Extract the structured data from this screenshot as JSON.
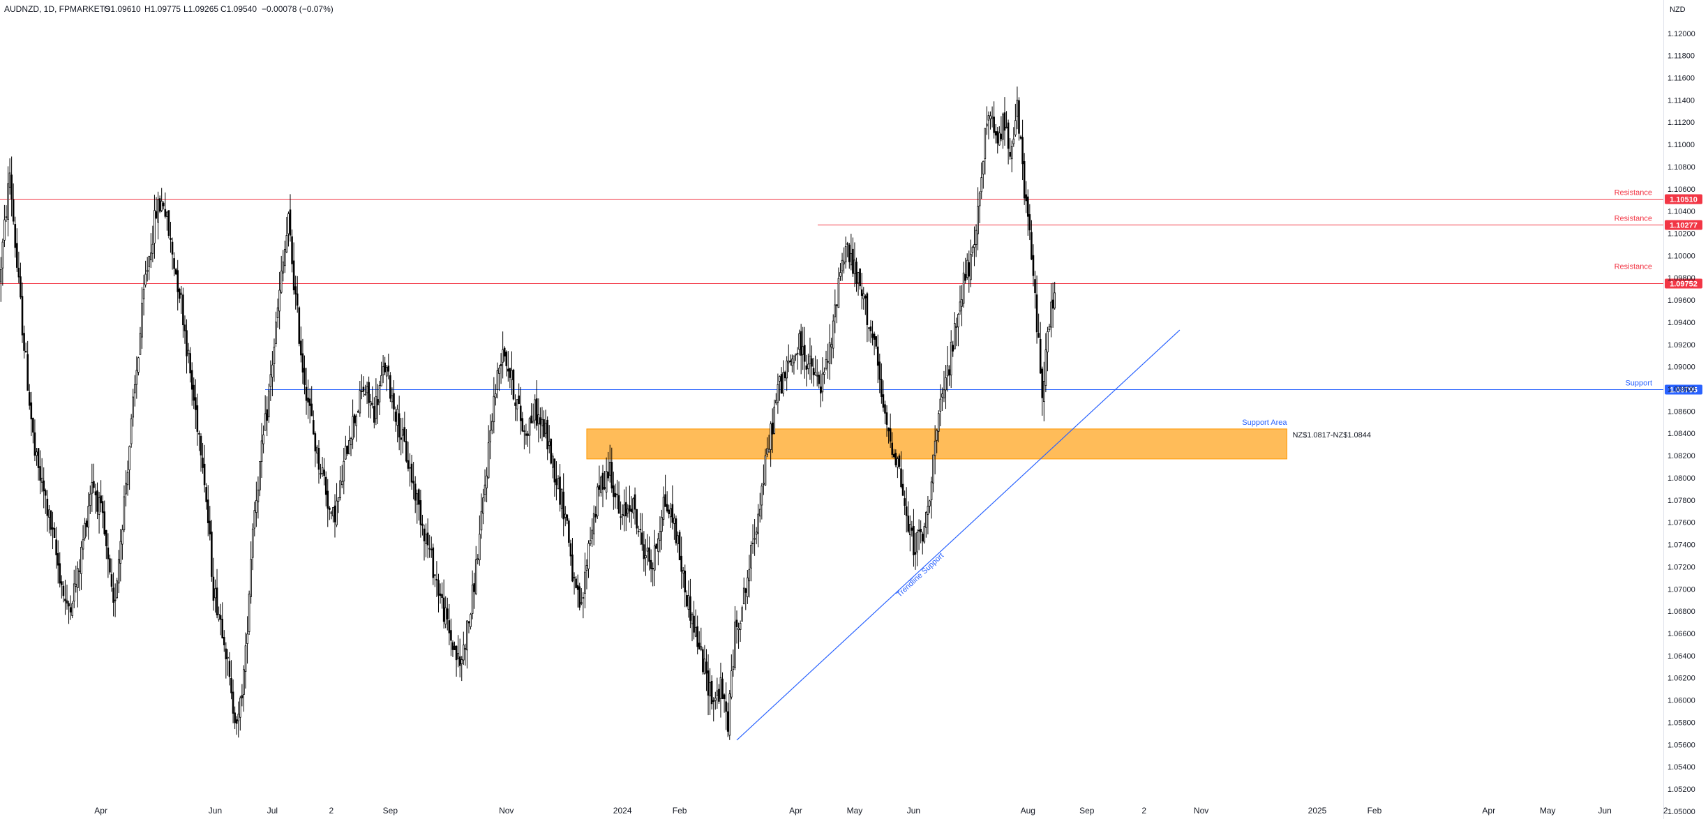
{
  "chart_data": {
    "type": "candlestick",
    "title": "AUDNZD, 1D, FPMARKETS",
    "ohlc_readout": {
      "open": "O1.09610",
      "high": "H1.09775",
      "low": "L1.09265",
      "close": "C1.09540",
      "change": "−0.00078 (−0.07%)"
    },
    "currency_label": "NZD",
    "ylim": [
      1.0493,
      1.123
    ],
    "y_ticks": [
      "1.12000",
      "1.11800",
      "1.11600",
      "1.11400",
      "1.11200",
      "1.11000",
      "1.10800",
      "1.10600",
      "1.10400",
      "1.10200",
      "1.10000",
      "1.09800",
      "1.09600",
      "1.09400",
      "1.09200",
      "1.09000",
      "1.08800",
      "1.08600",
      "1.08400",
      "1.08200",
      "1.08000",
      "1.07800",
      "1.07600",
      "1.07400",
      "1.07200",
      "1.07000",
      "1.06800",
      "1.06600",
      "1.06400",
      "1.06200",
      "1.06000",
      "1.05800",
      "1.05600",
      "1.05400",
      "1.05200",
      "1.05000"
    ],
    "x_ticks": [
      "Apr",
      "Jun",
      "Jul",
      "2",
      "Sep",
      "Nov",
      "2024",
      "Feb",
      "Apr",
      "May",
      "Jun",
      "Aug",
      "Sep",
      "2",
      "Nov",
      "2025",
      "Feb",
      "Apr",
      "May",
      "Jun",
      "2"
    ],
    "x_tick_bars": [
      56,
      120,
      152,
      185,
      218,
      283,
      348,
      380,
      445,
      478,
      511,
      575,
      608,
      640,
      672,
      737,
      769,
      833,
      866,
      898,
      932
    ],
    "price_path": [
      [
        0,
        1.0975
      ],
      [
        6,
        1.1075
      ],
      [
        10,
        1.099
      ],
      [
        14,
        1.092
      ],
      [
        20,
        1.082
      ],
      [
        26,
        1.078
      ],
      [
        32,
        1.073
      ],
      [
        38,
        1.068
      ],
      [
        44,
        1.071
      ],
      [
        52,
        1.08
      ],
      [
        58,
        1.076
      ],
      [
        64,
        1.068
      ],
      [
        70,
        1.078
      ],
      [
        76,
        1.088
      ],
      [
        82,
        1.098
      ],
      [
        88,
        1.104
      ],
      [
        92,
        1.105
      ],
      [
        96,
        1.101
      ],
      [
        102,
        1.096
      ],
      [
        108,
        1.088
      ],
      [
        114,
        1.082
      ],
      [
        120,
        1.07
      ],
      [
        126,
        1.066
      ],
      [
        130,
        1.06
      ],
      [
        134,
        1.058
      ],
      [
        138,
        1.064
      ],
      [
        142,
        1.076
      ],
      [
        150,
        1.086
      ],
      [
        154,
        1.092
      ],
      [
        158,
        1.098
      ],
      [
        162,
        1.103
      ],
      [
        166,
        1.096
      ],
      [
        170,
        1.09
      ],
      [
        174,
        1.086
      ],
      [
        178,
        1.082
      ],
      [
        182,
        1.08
      ],
      [
        186,
        1.076
      ],
      [
        190,
        1.078
      ],
      [
        196,
        1.084
      ],
      [
        204,
        1.088
      ],
      [
        210,
        1.086
      ],
      [
        216,
        1.09
      ],
      [
        222,
        1.086
      ],
      [
        228,
        1.082
      ],
      [
        234,
        1.078
      ],
      [
        240,
        1.074
      ],
      [
        246,
        1.07
      ],
      [
        252,
        1.066
      ],
      [
        258,
        1.063
      ],
      [
        264,
        1.068
      ],
      [
        270,
        1.076
      ],
      [
        276,
        1.086
      ],
      [
        282,
        1.092
      ],
      [
        288,
        1.088
      ],
      [
        294,
        1.084
      ],
      [
        300,
        1.086
      ],
      [
        306,
        1.084
      ],
      [
        312,
        1.08
      ],
      [
        318,
        1.076
      ],
      [
        322,
        1.07
      ],
      [
        326,
        1.068
      ],
      [
        330,
        1.074
      ],
      [
        336,
        1.079
      ],
      [
        342,
        1.081
      ],
      [
        348,
        1.076
      ],
      [
        354,
        1.078
      ],
      [
        360,
        1.074
      ],
      [
        366,
        1.072
      ],
      [
        372,
        1.078
      ],
      [
        378,
        1.076
      ],
      [
        384,
        1.07
      ],
      [
        390,
        1.066
      ],
      [
        396,
        1.062
      ],
      [
        400,
        1.06
      ],
      [
        404,
        1.061
      ],
      [
        408,
        1.058
      ],
      [
        412,
        1.066
      ],
      [
        418,
        1.07
      ],
      [
        424,
        1.076
      ],
      [
        430,
        1.082
      ],
      [
        436,
        1.088
      ],
      [
        442,
        1.09
      ],
      [
        448,
        1.092
      ],
      [
        454,
        1.09
      ],
      [
        460,
        1.088
      ],
      [
        466,
        1.092
      ],
      [
        470,
        1.098
      ],
      [
        474,
        1.101
      ],
      [
        478,
        1.099
      ],
      [
        484,
        1.096
      ],
      [
        490,
        1.092
      ],
      [
        496,
        1.085
      ],
      [
        500,
        1.083
      ],
      [
        504,
        1.081
      ],
      [
        508,
        1.076
      ],
      [
        512,
        1.074
      ],
      [
        518,
        1.075
      ],
      [
        524,
        1.083
      ],
      [
        528,
        1.087
      ],
      [
        534,
        1.092
      ],
      [
        540,
        1.098
      ],
      [
        546,
        1.1
      ],
      [
        550,
        1.108
      ],
      [
        554,
        1.113
      ],
      [
        558,
        1.11
      ],
      [
        562,
        1.112
      ],
      [
        566,
        1.11
      ],
      [
        570,
        1.113
      ],
      [
        574,
        1.106
      ],
      [
        578,
        1.1
      ],
      [
        582,
        1.092
      ],
      [
        584,
        1.088
      ],
      [
        588,
        1.094
      ],
      [
        590,
        1.096
      ]
    ],
    "levels": [
      {
        "name": "Resistance",
        "price": 1.1051,
        "label": "1.10510",
        "color": "#f23645"
      },
      {
        "name": "Resistance",
        "price": 1.10277,
        "label": "1.10277",
        "color": "#f23645"
      },
      {
        "name": "Resistance",
        "price": 1.09752,
        "label": "1.09752",
        "color": "#f23645"
      },
      {
        "name": "Support",
        "price": 1.08795,
        "label": "1.08795",
        "color": "#2962ff"
      }
    ],
    "support_area": {
      "label": "Support Area",
      "range_text": "NZ$1.0817-NZ$1.0844",
      "low": 1.0817,
      "high": 1.0844,
      "from_bar": 328,
      "to_bar": 720,
      "color": "#ff9800"
    },
    "trendline": {
      "label": "Trendline Support",
      "from": {
        "bar": 412,
        "price": 1.0564
      },
      "to": {
        "bar": 660,
        "price": 1.0933
      },
      "color": "#2962ff"
    }
  },
  "colors": {
    "background": "#ffffff",
    "candle": "#000000",
    "resistance": "#f23645",
    "support": "#2962ff",
    "support_area": "#ff9800",
    "axis_text": "#131722"
  }
}
